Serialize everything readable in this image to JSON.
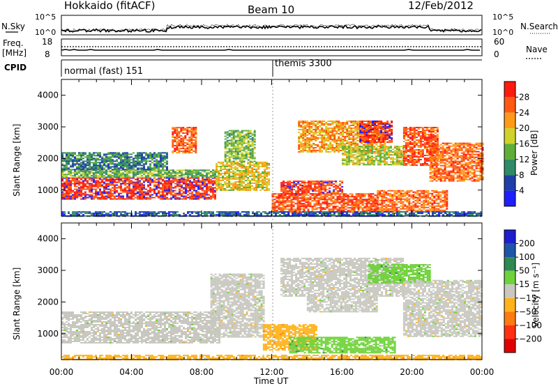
{
  "header": {
    "radar_title": "Hokkaido (fitACF)",
    "beam": "Beam 10",
    "date": "12/Feb/2012"
  },
  "noise_panel": {
    "left_label": "N.Sky",
    "right_label": "N.Search",
    "ticks": [
      "10^5",
      "10^0"
    ],
    "right_ticks": [
      "10^5",
      "10^0"
    ]
  },
  "freq_panel": {
    "left_label_line1": "Freq.",
    "left_label_line2": "[MHz]",
    "left_ticks": [
      "18",
      "8"
    ],
    "right_label": "Nave",
    "right_ticks": [
      "60",
      "0"
    ]
  },
  "cpid_panel": {
    "label": "CPID",
    "segments": [
      {
        "start_hour": 0,
        "text": "normal (fast) 151"
      },
      {
        "start_hour": 12,
        "text": "themis 3300"
      }
    ]
  },
  "x_axis": {
    "label": "Time UT",
    "min_hour": 0,
    "max_hour": 24,
    "ticks": [
      0,
      4,
      8,
      12,
      16,
      20,
      24
    ],
    "tick_labels": [
      "00:00",
      "04:00",
      "08:00",
      "12:00",
      "16:00",
      "20:00",
      "00:00"
    ]
  },
  "chart_data": [
    {
      "type": "heatmap",
      "title": "",
      "xlabel": "",
      "ylabel": "Slant Range [km]",
      "xlim": [
        0,
        24
      ],
      "ylim": [
        180,
        4500
      ],
      "yticks": [
        1000,
        2000,
        3000,
        4000
      ],
      "colorbar": {
        "label": "Power [dB]",
        "ticks": [
          "4",
          "8",
          "12",
          "16",
          "20",
          "24",
          "28"
        ],
        "levels": [
          {
            "min": 0,
            "max": 4,
            "color": "#1e1eff"
          },
          {
            "min": 4,
            "max": 8,
            "color": "#1f3fa8"
          },
          {
            "min": 8,
            "max": 12,
            "color": "#2f8a66"
          },
          {
            "min": 12,
            "max": 16,
            "color": "#5fae3a"
          },
          {
            "min": 16,
            "max": 20,
            "color": "#cfd22a"
          },
          {
            "min": 20,
            "max": 24,
            "color": "#ff9a18"
          },
          {
            "min": 24,
            "max": 28,
            "color": "#ff5a10"
          },
          {
            "min": 28,
            "max": 32,
            "color": "#ff1a10"
          }
        ]
      },
      "regions": [
        {
          "t": [
            0.0,
            8.8
          ],
          "r": [
            700,
            1400
          ],
          "value": 29
        },
        {
          "t": [
            0.0,
            8.8
          ],
          "r": [
            1400,
            1650
          ],
          "value": 14
        },
        {
          "t": [
            0.0,
            6.0
          ],
          "r": [
            1650,
            2200
          ],
          "value": 10
        },
        {
          "t": [
            6.3,
            7.7
          ],
          "r": [
            2200,
            3000
          ],
          "value": 26
        },
        {
          "t": [
            8.8,
            11.8
          ],
          "r": [
            1000,
            1900
          ],
          "value": 19
        },
        {
          "t": [
            9.3,
            11.0
          ],
          "r": [
            1900,
            2900
          ],
          "value": 15
        },
        {
          "t": [
            12.0,
            18.0
          ],
          "r": [
            300,
            900
          ],
          "value": 27
        },
        {
          "t": [
            12.5,
            16.0
          ],
          "r": [
            900,
            1300
          ],
          "value": 28
        },
        {
          "t": [
            13.5,
            18.5
          ],
          "r": [
            2200,
            3200
          ],
          "value": 22
        },
        {
          "t": [
            16.0,
            19.5
          ],
          "r": [
            1800,
            2400
          ],
          "value": 17
        },
        {
          "t": [
            17.0,
            18.8
          ],
          "r": [
            2500,
            3200
          ],
          "value": 29
        },
        {
          "t": [
            18.0,
            22.0
          ],
          "r": [
            300,
            1000
          ],
          "value": 25
        },
        {
          "t": [
            19.5,
            21.5
          ],
          "r": [
            1800,
            3000
          ],
          "value": 27
        },
        {
          "t": [
            21.0,
            24.0
          ],
          "r": [
            1300,
            2500
          ],
          "value": 25
        },
        {
          "t": [
            0.0,
            24.0
          ],
          "r": [
            180,
            330
          ],
          "value": 7
        }
      ]
    },
    {
      "type": "heatmap",
      "title": "",
      "xlabel": "Time UT",
      "ylabel": "Slant Range [km]",
      "xlim": [
        0,
        24
      ],
      "ylim": [
        180,
        4500
      ],
      "yticks": [
        1000,
        2000,
        3000,
        4000
      ],
      "colorbar": {
        "label": "Velocity [m s⁻¹]",
        "ticks": [
          "200",
          "100",
          "50",
          "15",
          "−15",
          "−50",
          "−100",
          "−200"
        ],
        "levels": [
          {
            "min": 200,
            "max": 260,
            "color": "#1e1ecf"
          },
          {
            "min": 100,
            "max": 200,
            "color": "#1f55a8"
          },
          {
            "min": 50,
            "max": 100,
            "color": "#2f8a52"
          },
          {
            "min": 15,
            "max": 50,
            "color": "#6fd23a"
          },
          {
            "min": -15,
            "max": 15,
            "color": "#c8c8c0"
          },
          {
            "min": -50,
            "max": -15,
            "color": "#ffb21a"
          },
          {
            "min": -100,
            "max": -50,
            "color": "#ff7a10"
          },
          {
            "min": -200,
            "max": -100,
            "color": "#ff3010"
          },
          {
            "min": -260,
            "max": -200,
            "color": "#e00000"
          }
        ]
      },
      "regions": [
        {
          "t": [
            0.0,
            9.0
          ],
          "r": [
            700,
            1700
          ],
          "value": 0
        },
        {
          "t": [
            8.5,
            11.5
          ],
          "r": [
            900,
            2900
          ],
          "value": 0
        },
        {
          "t": [
            11.5,
            14.5
          ],
          "r": [
            500,
            1300
          ],
          "value": -40
        },
        {
          "t": [
            13.0,
            19.0
          ],
          "r": [
            400,
            900
          ],
          "value": 30
        },
        {
          "t": [
            12.5,
            19.5
          ],
          "r": [
            2200,
            3400
          ],
          "value": 0
        },
        {
          "t": [
            14.0,
            18.0
          ],
          "r": [
            1700,
            2200
          ],
          "value": 0
        },
        {
          "t": [
            17.5,
            21.0
          ],
          "r": [
            2600,
            3200
          ],
          "value": 30
        },
        {
          "t": [
            19.5,
            24.0
          ],
          "r": [
            900,
            2700
          ],
          "value": 0
        },
        {
          "t": [
            0.0,
            24.0
          ],
          "r": [
            180,
            330
          ],
          "value": -30
        }
      ]
    }
  ]
}
